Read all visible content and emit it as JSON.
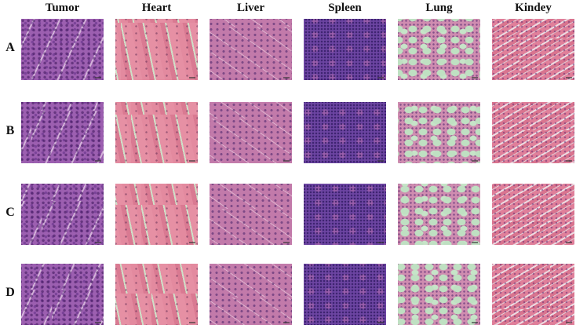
{
  "columns": [
    {
      "label": "Tumor",
      "tissue": "tumor"
    },
    {
      "label": "Heart",
      "tissue": "heart"
    },
    {
      "label": "Liver",
      "tissue": "liver"
    },
    {
      "label": "Spleen",
      "tissue": "spleen"
    },
    {
      "label": "Lung",
      "tissue": "lung"
    },
    {
      "label": "Kindey",
      "tissue": "kidney"
    }
  ],
  "rows": [
    "A",
    "B",
    "C",
    "D"
  ],
  "stain_colors": {
    "eosin_pink": "#e38a9f",
    "hematoxylin_purple": "#6c45a2",
    "background_green": "#bfe0c2"
  }
}
